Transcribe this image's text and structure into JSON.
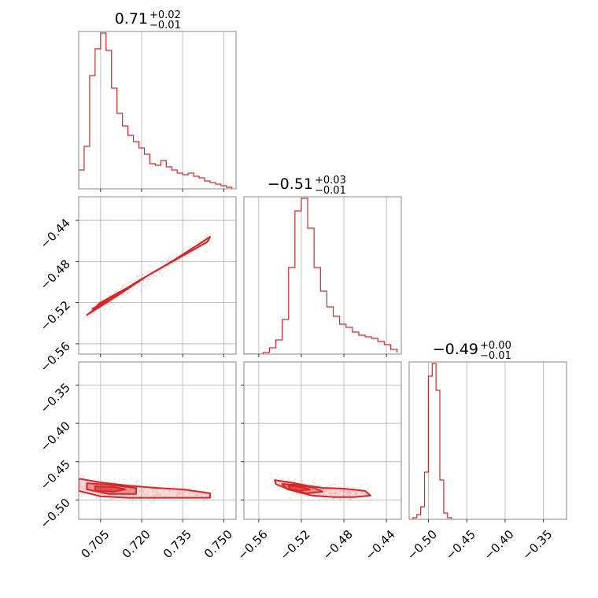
{
  "figure": {
    "background": "#ffffff",
    "accent_color": "#d62728"
  },
  "chart_data": [
    {
      "type": "histogram",
      "panel": "hist-0",
      "title": {
        "value": "0.71",
        "plus": "+0.02",
        "minus": "−0.01"
      },
      "xlim": [
        0.697,
        0.7545
      ],
      "xticks": [
        0.705,
        0.72,
        0.735,
        0.75
      ],
      "grid": true,
      "bins": [
        0.697,
        0.699,
        0.701,
        0.703,
        0.705,
        0.707,
        0.709,
        0.711,
        0.713,
        0.715,
        0.717,
        0.719,
        0.721,
        0.723,
        0.725,
        0.727,
        0.729,
        0.731,
        0.733,
        0.735,
        0.737,
        0.739,
        0.741,
        0.743,
        0.745,
        0.747,
        0.749,
        0.751,
        0.753
      ],
      "counts": [
        0.12,
        0.27,
        0.72,
        0.89,
        0.99,
        0.88,
        0.64,
        0.48,
        0.4,
        0.34,
        0.3,
        0.26,
        0.22,
        0.16,
        0.15,
        0.18,
        0.14,
        0.12,
        0.1,
        0.09,
        0.1,
        0.08,
        0.07,
        0.05,
        0.04,
        0.03,
        0.02,
        0.01
      ]
    },
    {
      "type": "histogram",
      "panel": "hist-1",
      "title": {
        "value": "−0.51",
        "plus": "+0.03",
        "minus": "−0.01"
      },
      "xlim": [
        -0.574,
        -0.426
      ],
      "xticks": [
        -0.56,
        -0.52,
        -0.48,
        -0.44
      ],
      "grid": true,
      "bins": [
        -0.574,
        -0.568,
        -0.562,
        -0.556,
        -0.55,
        -0.544,
        -0.538,
        -0.532,
        -0.526,
        -0.52,
        -0.514,
        -0.508,
        -0.502,
        -0.496,
        -0.49,
        -0.484,
        -0.478,
        -0.472,
        -0.466,
        -0.46,
        -0.454,
        -0.448,
        -0.442,
        -0.436,
        -0.43
      ],
      "counts": [
        0.0,
        0.0,
        0.0,
        0.01,
        0.04,
        0.09,
        0.22,
        0.55,
        0.91,
        0.99,
        0.8,
        0.55,
        0.4,
        0.3,
        0.24,
        0.19,
        0.17,
        0.14,
        0.12,
        0.11,
        0.1,
        0.08,
        0.06,
        0.03,
        0.01
      ]
    },
    {
      "type": "histogram",
      "panel": "hist-2",
      "title": {
        "value": "−0.49",
        "plus": "+0.00",
        "minus": "−0.01"
      },
      "xlim": [
        -0.525,
        -0.32
      ],
      "xticks": [
        -0.5,
        -0.45,
        -0.4,
        -0.35
      ],
      "grid": true,
      "bins": [
        -0.525,
        -0.52,
        -0.515,
        -0.51,
        -0.505,
        -0.5,
        -0.495,
        -0.49,
        -0.485,
        -0.48,
        -0.475,
        -0.47,
        -0.465
      ],
      "counts": [
        0.0,
        0.01,
        0.03,
        0.08,
        0.3,
        0.91,
        0.99,
        0.82,
        0.25,
        0.04,
        0.01,
        0.0
      ]
    },
    {
      "type": "scatter",
      "panel": "corner-1-0",
      "xlim": [
        0.697,
        0.7545
      ],
      "ylim": [
        -0.57,
        -0.417
      ],
      "xticks": [
        0.705,
        0.72,
        0.735,
        0.75
      ],
      "yticks": [
        -0.44,
        -0.48,
        -0.52,
        -0.56
      ],
      "grid": true,
      "contours": [
        {
          "level": "outer",
          "points": [
            [
              0.7,
              -0.532
            ],
            [
              0.706,
              -0.522
            ],
            [
              0.713,
              -0.51
            ],
            [
              0.722,
              -0.494
            ],
            [
              0.731,
              -0.48
            ],
            [
              0.741,
              -0.463
            ],
            [
              0.745,
              -0.456
            ],
            [
              0.744,
              -0.461
            ],
            [
              0.738,
              -0.47
            ],
            [
              0.728,
              -0.485
            ],
            [
              0.72,
              -0.497
            ],
            [
              0.712,
              -0.51
            ],
            [
              0.705,
              -0.522
            ],
            [
              0.701,
              -0.53
            ]
          ]
        },
        {
          "level": "middle",
          "points": [
            [
              0.702,
              -0.526
            ],
            [
              0.708,
              -0.517
            ],
            [
              0.715,
              -0.506
            ],
            [
              0.72,
              -0.497
            ],
            [
              0.718,
              -0.501
            ],
            [
              0.711,
              -0.511
            ],
            [
              0.705,
              -0.52
            ],
            [
              0.703,
              -0.525
            ]
          ]
        },
        {
          "level": "inner",
          "points": [
            [
              0.704,
              -0.522
            ],
            [
              0.708,
              -0.516
            ],
            [
              0.711,
              -0.512
            ],
            [
              0.709,
              -0.515
            ],
            [
              0.705,
              -0.52
            ]
          ]
        }
      ]
    },
    {
      "type": "scatter",
      "panel": "corner-2-0",
      "xlim": [
        0.697,
        0.7545
      ],
      "ylim": [
        -0.525,
        -0.32
      ],
      "xticks": [
        0.705,
        0.72,
        0.735,
        0.75
      ],
      "yticks": [
        -0.35,
        -0.4,
        -0.45,
        -0.5
      ],
      "grid": true,
      "contours": [
        {
          "level": "outer",
          "points": [
            [
              0.697,
              -0.472
            ],
            [
              0.705,
              -0.477
            ],
            [
              0.715,
              -0.481
            ],
            [
              0.725,
              -0.484
            ],
            [
              0.735,
              -0.486
            ],
            [
              0.745,
              -0.491
            ],
            [
              0.745,
              -0.497
            ],
            [
              0.735,
              -0.497
            ],
            [
              0.725,
              -0.497
            ],
            [
              0.715,
              -0.497
            ],
            [
              0.705,
              -0.495
            ],
            [
              0.697,
              -0.488
            ]
          ]
        },
        {
          "level": "middle",
          "points": [
            [
              0.7,
              -0.478
            ],
            [
              0.708,
              -0.48
            ],
            [
              0.718,
              -0.484
            ],
            [
              0.718,
              -0.492
            ],
            [
              0.708,
              -0.492
            ],
            [
              0.7,
              -0.486
            ]
          ]
        },
        {
          "level": "inner",
          "points": [
            [
              0.703,
              -0.482
            ],
            [
              0.71,
              -0.483
            ],
            [
              0.714,
              -0.486
            ],
            [
              0.71,
              -0.489
            ],
            [
              0.703,
              -0.488
            ]
          ]
        }
      ]
    },
    {
      "type": "scatter",
      "panel": "corner-2-1",
      "xlim": [
        -0.574,
        -0.426
      ],
      "ylim": [
        -0.525,
        -0.32
      ],
      "xticks": [
        -0.56,
        -0.52,
        -0.48,
        -0.44
      ],
      "yticks": [
        -0.35,
        -0.4,
        -0.45,
        -0.5
      ],
      "grid": true,
      "contours": [
        {
          "level": "outer",
          "points": [
            [
              -0.545,
              -0.474
            ],
            [
              -0.53,
              -0.477
            ],
            [
              -0.515,
              -0.481
            ],
            [
              -0.5,
              -0.484
            ],
            [
              -0.48,
              -0.485
            ],
            [
              -0.46,
              -0.488
            ],
            [
              -0.455,
              -0.494
            ],
            [
              -0.47,
              -0.496
            ],
            [
              -0.49,
              -0.496
            ],
            [
              -0.51,
              -0.494
            ],
            [
              -0.53,
              -0.487
            ],
            [
              -0.544,
              -0.479
            ]
          ]
        },
        {
          "level": "middle",
          "points": [
            [
              -0.538,
              -0.479
            ],
            [
              -0.525,
              -0.48
            ],
            [
              -0.508,
              -0.484
            ],
            [
              -0.5,
              -0.489
            ],
            [
              -0.515,
              -0.491
            ],
            [
              -0.533,
              -0.486
            ]
          ]
        },
        {
          "level": "inner",
          "points": [
            [
              -0.532,
              -0.481
            ],
            [
              -0.52,
              -0.483
            ],
            [
              -0.512,
              -0.486
            ],
            [
              -0.522,
              -0.488
            ],
            [
              -0.531,
              -0.485
            ]
          ]
        }
      ]
    }
  ]
}
